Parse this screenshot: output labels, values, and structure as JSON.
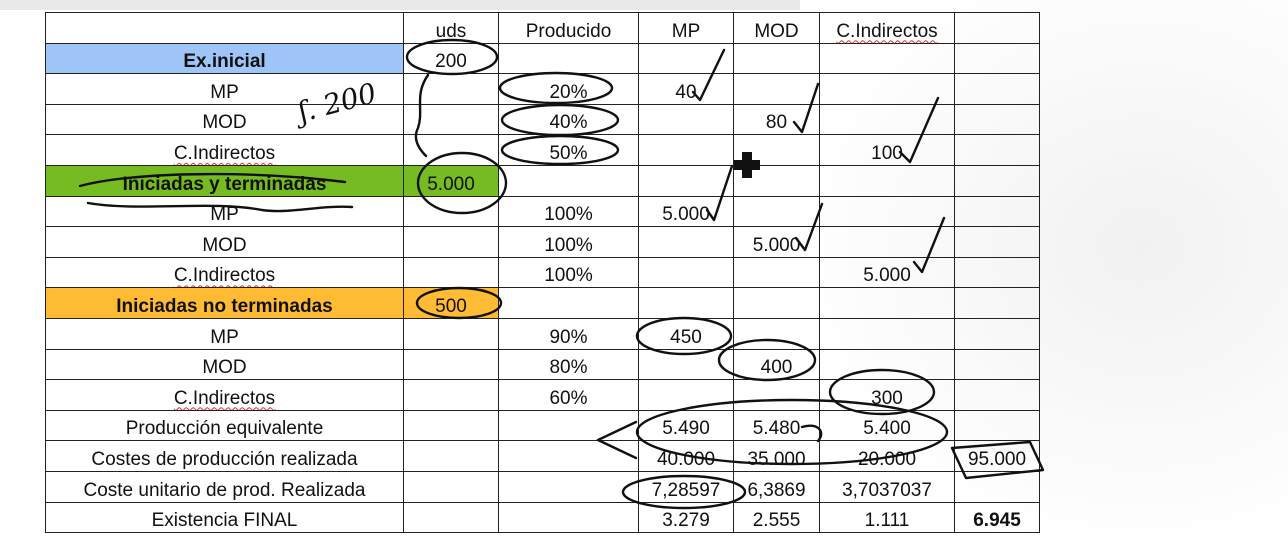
{
  "headers": {
    "uds": "uds",
    "producido": "Producido",
    "mp": "MP",
    "mod": "MOD",
    "ci": "C.Indirectos"
  },
  "rows": [
    {
      "label": "Ex.inicial",
      "uds": "200",
      "producido": "",
      "mp": "",
      "mod": "",
      "ci": "",
      "extra": ""
    },
    {
      "label": "MP",
      "uds": "",
      "producido": "20%",
      "mp": "40",
      "mod": "",
      "ci": "",
      "extra": ""
    },
    {
      "label": "MOD",
      "uds": "",
      "producido": "40%",
      "mp": "",
      "mod": "80",
      "ci": "",
      "extra": ""
    },
    {
      "label": "C.Indirectos",
      "uds": "",
      "producido": "50%",
      "mp": "",
      "mod": "",
      "ci": "100",
      "extra": ""
    },
    {
      "label": "Iniciadas y terminadas",
      "uds": "5.000",
      "producido": "",
      "mp": "",
      "mod": "",
      "ci": "",
      "extra": ""
    },
    {
      "label": "MP",
      "uds": "",
      "producido": "100%",
      "mp": "5.000",
      "mod": "",
      "ci": "",
      "extra": ""
    },
    {
      "label": "MOD",
      "uds": "",
      "producido": "100%",
      "mp": "",
      "mod": "5.000",
      "ci": "",
      "extra": ""
    },
    {
      "label": "C.Indirectos",
      "uds": "",
      "producido": "100%",
      "mp": "",
      "mod": "",
      "ci": "5.000",
      "extra": ""
    },
    {
      "label": "Iniciadas no terminadas",
      "uds": "500",
      "producido": "",
      "mp": "",
      "mod": "",
      "ci": "",
      "extra": ""
    },
    {
      "label": "MP",
      "uds": "",
      "producido": "90%",
      "mp": "450",
      "mod": "",
      "ci": "",
      "extra": ""
    },
    {
      "label": "MOD",
      "uds": "",
      "producido": "80%",
      "mp": "",
      "mod": "400",
      "ci": "",
      "extra": ""
    },
    {
      "label": "C.Indirectos",
      "uds": "",
      "producido": "60%",
      "mp": "",
      "mod": "",
      "ci": "300",
      "extra": ""
    },
    {
      "label": "Producción equivalente",
      "uds": "",
      "producido": "",
      "mp": "5.490",
      "mod": "5.480",
      "ci": "5.400",
      "extra": ""
    },
    {
      "label": "Costes de producción realizada",
      "uds": "",
      "producido": "",
      "mp": "40.000",
      "mod": "35.000",
      "ci": "20.000",
      "extra": "95.000"
    },
    {
      "label": "Coste unitario de prod. Realizada",
      "uds": "",
      "producido": "",
      "mp": "7,28597",
      "mod": "6,3869",
      "ci": "3,7037037",
      "extra": ""
    },
    {
      "label": "Existencia FINAL",
      "uds": "",
      "producido": "",
      "mp": "3.279",
      "mod": "2.555",
      "ci": "1.111",
      "extra": "6.945"
    }
  ],
  "annotations": {
    "margin_note": "ʃ. 200"
  }
}
